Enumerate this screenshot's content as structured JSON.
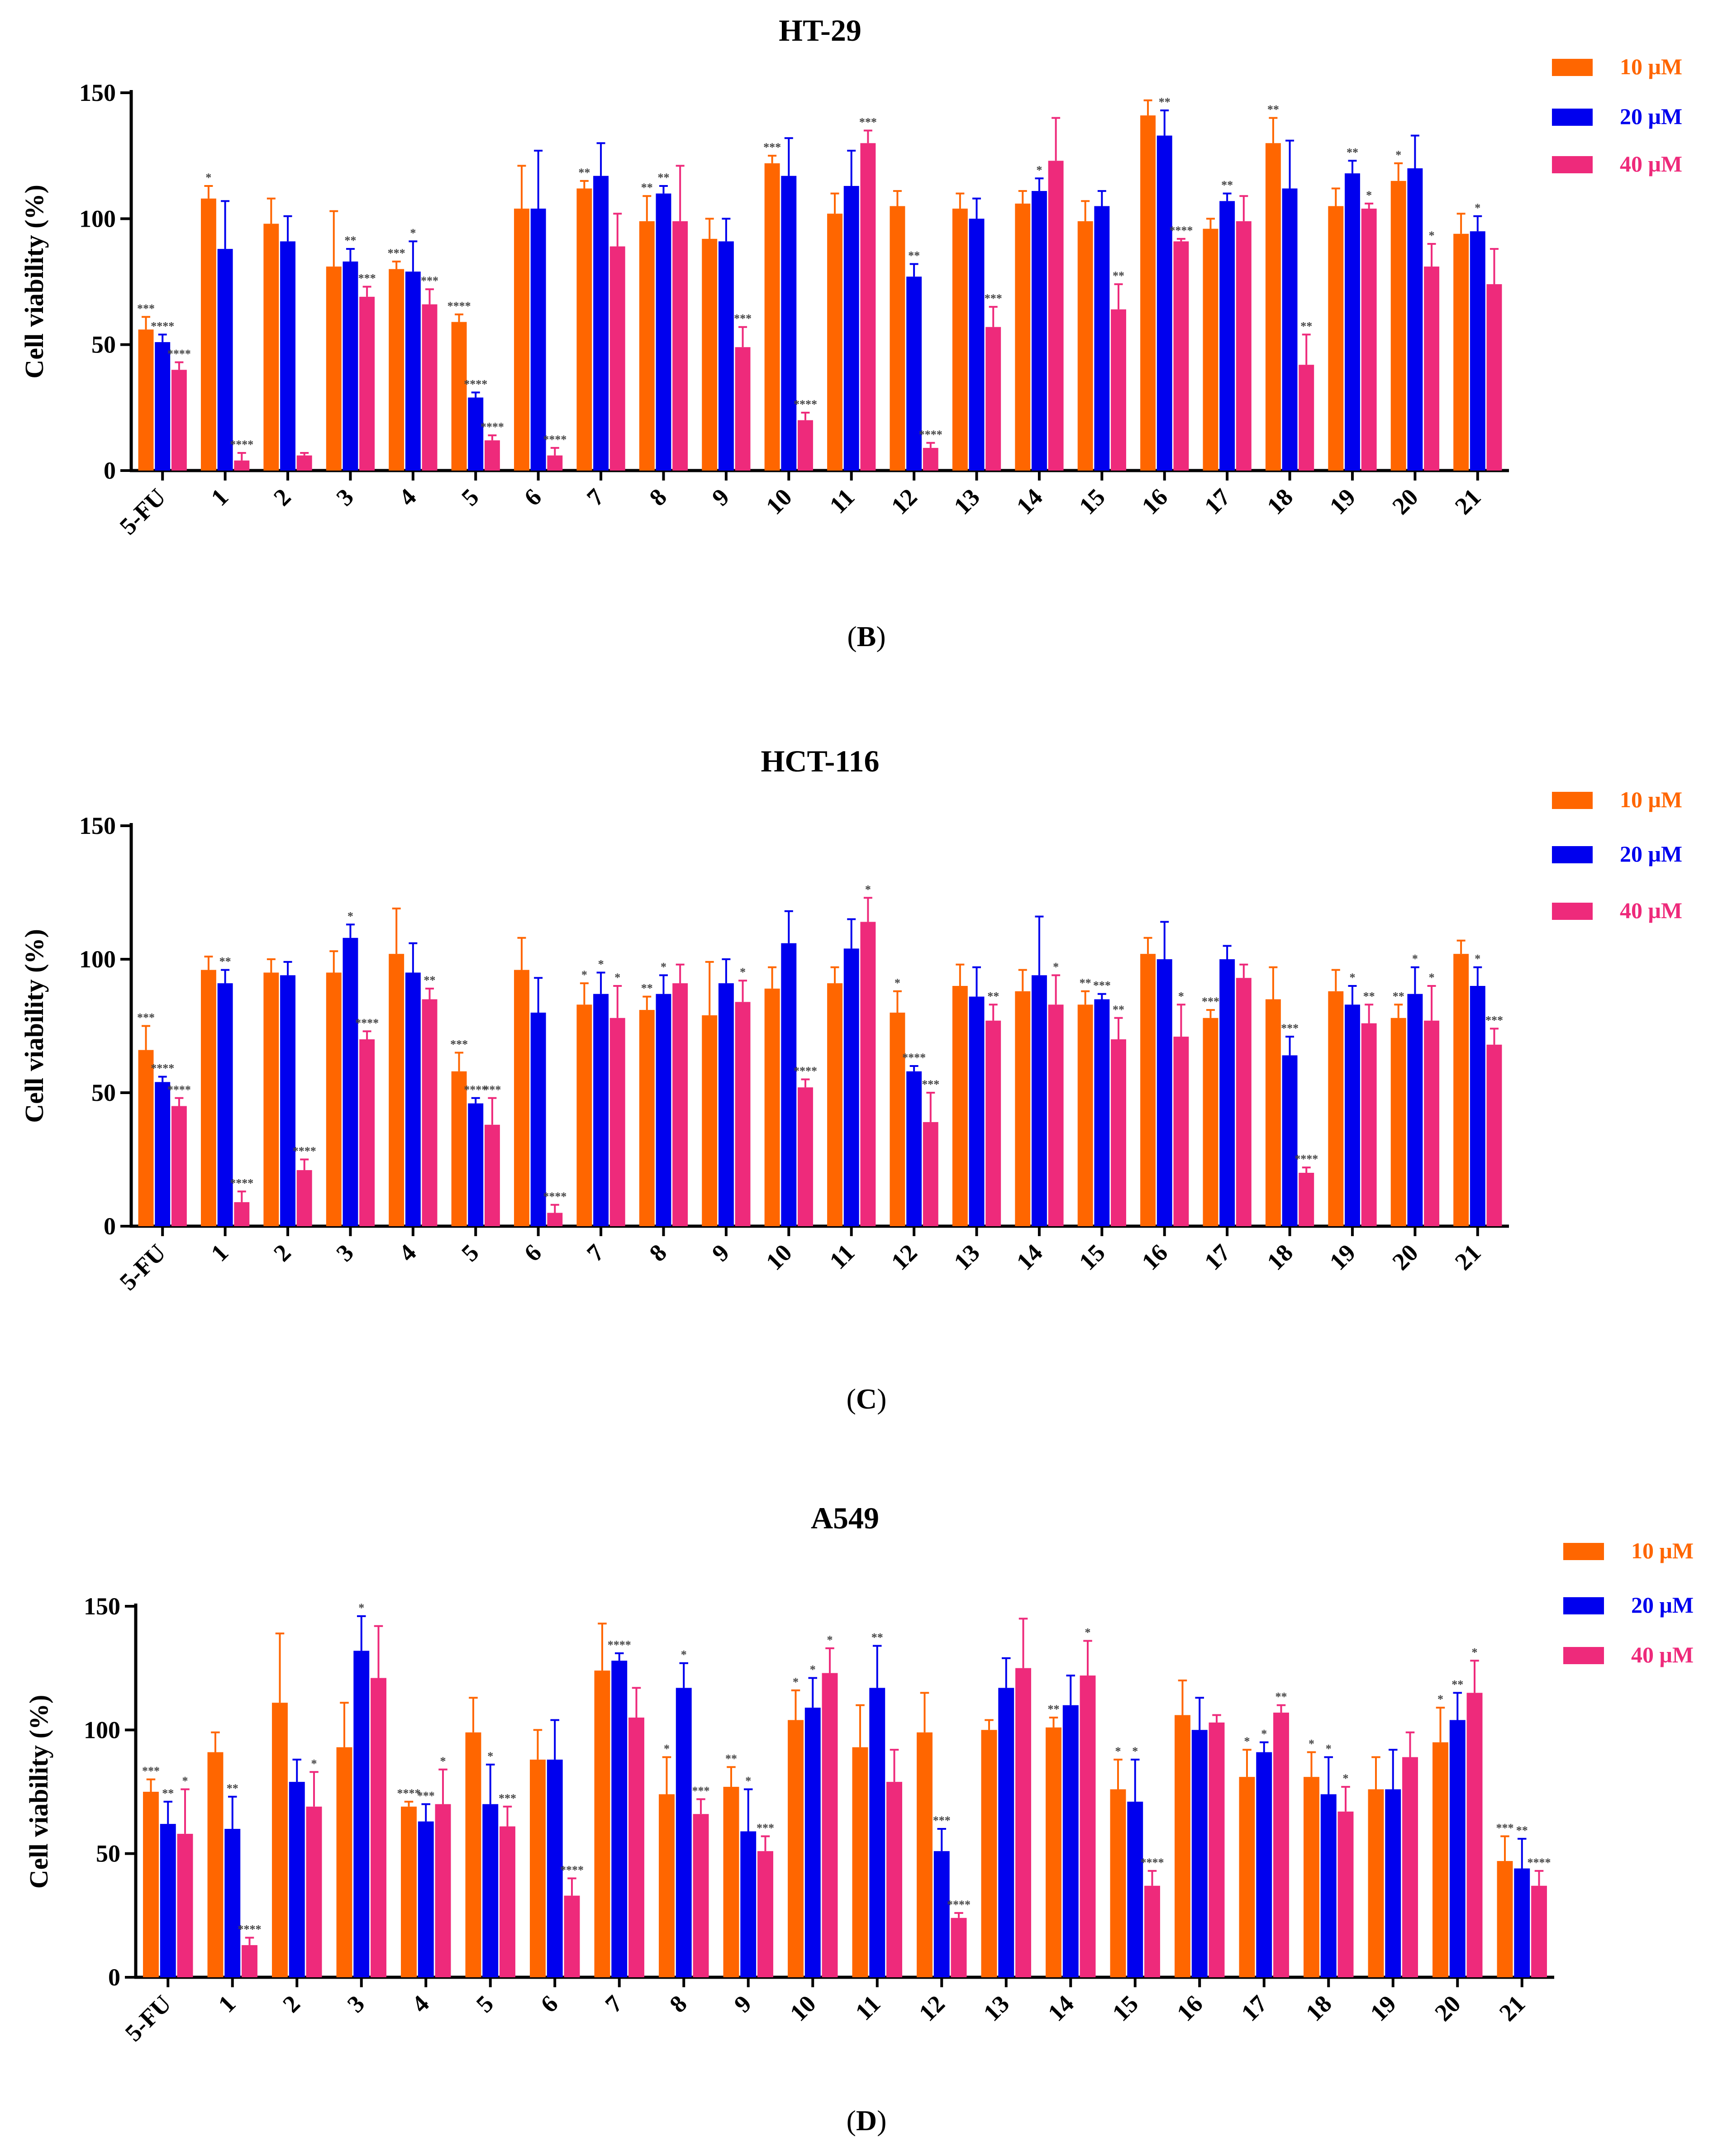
{
  "figure": {
    "panel_labels": [
      {
        "prefix": "(",
        "letter": "B",
        "suffix": ")"
      },
      {
        "prefix": "(",
        "letter": "C",
        "suffix": ")"
      },
      {
        "prefix": "(",
        "letter": "D",
        "suffix": ")"
      }
    ]
  },
  "colors": {
    "s10": "#ff6600",
    "s20": "#0000ee",
    "s40": "#ee2a7b",
    "axis": "#000000",
    "stars": "#444444"
  },
  "chart_data": [
    {
      "type": "bar",
      "title": "HT-29",
      "ylabel": "Cell viability (%)",
      "xlabel": "",
      "ylim": [
        0,
        150
      ],
      "yticks": [
        0,
        50,
        100,
        150
      ],
      "legend_position": "top-right",
      "categories": [
        "5-FU",
        "1",
        "2",
        "3",
        "4",
        "5",
        "6",
        "7",
        "8",
        "9",
        "10",
        "11",
        "12",
        "13",
        "14",
        "15",
        "16",
        "17",
        "18",
        "19",
        "20",
        "21"
      ],
      "series": [
        {
          "name": "10 μM",
          "values": [
            56,
            108,
            98,
            81,
            80,
            59,
            104,
            112,
            99,
            92,
            122,
            102,
            105,
            104,
            106,
            99,
            141,
            96,
            130,
            105,
            115,
            94
          ],
          "errors": [
            5,
            5,
            10,
            22,
            3,
            3,
            17,
            3,
            10,
            8,
            3,
            8,
            6,
            6,
            5,
            8,
            6,
            4,
            10,
            7,
            7,
            8
          ],
          "stars": [
            "***",
            "*",
            "",
            "",
            "***",
            "****",
            "",
            "**",
            "**",
            "",
            "***",
            "",
            "",
            "",
            "",
            "",
            "",
            "",
            "**",
            "",
            "*",
            ""
          ]
        },
        {
          "name": "20 μM",
          "values": [
            51,
            88,
            91,
            83,
            79,
            29,
            104,
            117,
            110,
            91,
            117,
            113,
            77,
            100,
            111,
            105,
            133,
            107,
            112,
            118,
            120,
            95
          ],
          "errors": [
            3,
            19,
            10,
            5,
            12,
            2,
            23,
            13,
            3,
            9,
            15,
            14,
            5,
            8,
            5,
            6,
            10,
            3,
            19,
            5,
            13,
            6
          ],
          "stars": [
            "****",
            "",
            "",
            "**",
            "*",
            "****",
            "",
            "",
            "**",
            "",
            "",
            "",
            "**",
            "",
            "*",
            "",
            "**",
            "**",
            "",
            "**",
            "",
            "*"
          ]
        },
        {
          "name": "40 μM",
          "values": [
            40,
            4,
            6,
            69,
            66,
            12,
            6,
            89,
            99,
            49,
            20,
            130,
            9,
            57,
            123,
            64,
            91,
            99,
            42,
            104,
            81,
            74
          ],
          "errors": [
            3,
            3,
            1,
            4,
            6,
            2,
            3,
            13,
            22,
            8,
            3,
            5,
            2,
            8,
            17,
            10,
            1,
            10,
            12,
            2,
            9,
            14
          ],
          "stars": [
            "****",
            "****",
            "",
            "***",
            "***",
            "****",
            "****",
            "",
            "",
            "***",
            "****",
            "***",
            "****",
            "***",
            "",
            "**",
            "****",
            "",
            "**",
            "*",
            "*",
            ""
          ]
        }
      ]
    },
    {
      "type": "bar",
      "title": "HCT-116",
      "ylabel": "Cell viability (%)",
      "xlabel": "",
      "ylim": [
        0,
        150
      ],
      "yticks": [
        0,
        50,
        100,
        150
      ],
      "legend_position": "top-right",
      "categories": [
        "5-FU",
        "1",
        "2",
        "3",
        "4",
        "5",
        "6",
        "7",
        "8",
        "9",
        "10",
        "11",
        "12",
        "13",
        "14",
        "15",
        "16",
        "17",
        "18",
        "19",
        "20",
        "21"
      ],
      "series": [
        {
          "name": "10 μM",
          "values": [
            66,
            96,
            95,
            95,
            102,
            58,
            96,
            83,
            81,
            79,
            89,
            91,
            80,
            90,
            88,
            83,
            102,
            78,
            85,
            88,
            78,
            102
          ],
          "errors": [
            9,
            5,
            5,
            8,
            17,
            7,
            12,
            8,
            5,
            20,
            8,
            6,
            8,
            8,
            8,
            5,
            6,
            3,
            12,
            8,
            5,
            5
          ],
          "stars": [
            "***",
            "",
            "",
            "",
            "",
            "***",
            "",
            "*",
            "**",
            "",
            "",
            "",
            "*",
            "",
            "",
            "**",
            "",
            "***",
            "",
            "",
            "**",
            ""
          ]
        },
        {
          "name": "20 μM",
          "values": [
            54,
            91,
            94,
            108,
            95,
            46,
            80,
            87,
            87,
            91,
            106,
            104,
            58,
            86,
            94,
            85,
            100,
            100,
            64,
            83,
            87,
            90
          ],
          "errors": [
            2,
            5,
            5,
            5,
            11,
            2,
            13,
            8,
            7,
            9,
            12,
            11,
            2,
            11,
            22,
            2,
            14,
            5,
            7,
            7,
            10,
            7
          ],
          "stars": [
            "****",
            "**",
            "",
            "*",
            "",
            "****",
            "",
            "*",
            "*",
            "",
            "",
            "",
            "****",
            "",
            "",
            "***",
            "",
            "",
            "***",
            "*",
            "*",
            "*"
          ]
        },
        {
          "name": "40 μM",
          "values": [
            45,
            9,
            21,
            70,
            85,
            38,
            5,
            78,
            91,
            84,
            52,
            114,
            39,
            77,
            83,
            70,
            71,
            93,
            20,
            76,
            77,
            68
          ],
          "errors": [
            3,
            4,
            4,
            3,
            4,
            10,
            3,
            12,
            7,
            8,
            3,
            9,
            11,
            6,
            11,
            8,
            12,
            5,
            2,
            7,
            13,
            6
          ],
          "stars": [
            "****",
            "****",
            "****",
            "****",
            "**",
            "***",
            "****",
            "*",
            "",
            "*",
            "****",
            "*",
            "***",
            "**",
            "*",
            "**",
            "*",
            "",
            "****",
            "**",
            "*",
            "***"
          ]
        }
      ]
    },
    {
      "type": "bar",
      "title": "A549",
      "ylabel": "Cell viability (%)",
      "xlabel": "",
      "ylim": [
        0,
        150
      ],
      "yticks": [
        0,
        50,
        100,
        150
      ],
      "legend_position": "top-right",
      "categories": [
        "5-FU",
        "1",
        "2",
        "3",
        "4",
        "5",
        "6",
        "7",
        "8",
        "9",
        "10",
        "11",
        "12",
        "13",
        "14",
        "15",
        "16",
        "17",
        "18",
        "19",
        "20",
        "21"
      ],
      "series": [
        {
          "name": "10 μM",
          "values": [
            75,
            91,
            111,
            93,
            69,
            99,
            88,
            124,
            74,
            77,
            104,
            93,
            99,
            100,
            101,
            76,
            106,
            81,
            81,
            76,
            95,
            47
          ],
          "errors": [
            5,
            8,
            28,
            18,
            2,
            14,
            12,
            19,
            15,
            8,
            12,
            17,
            16,
            4,
            4,
            12,
            14,
            11,
            10,
            13,
            14,
            10
          ],
          "stars": [
            "***",
            "",
            "",
            "",
            "****",
            "",
            "",
            "",
            "*",
            "**",
            "*",
            "",
            "",
            "",
            "**",
            "*",
            "",
            "*",
            "*",
            "",
            "*",
            "***"
          ]
        },
        {
          "name": "20 μM",
          "values": [
            62,
            60,
            79,
            132,
            63,
            70,
            88,
            128,
            117,
            59,
            109,
            117,
            51,
            117,
            110,
            71,
            100,
            91,
            74,
            76,
            104,
            44
          ],
          "errors": [
            9,
            13,
            9,
            14,
            7,
            16,
            16,
            3,
            10,
            17,
            12,
            17,
            9,
            12,
            12,
            17,
            13,
            4,
            15,
            16,
            11,
            12
          ],
          "stars": [
            "**",
            "**",
            "",
            "*",
            "***",
            "*",
            "",
            "****",
            "*",
            "*",
            "*",
            "**",
            "***",
            "",
            "",
            "*",
            "",
            "*",
            "*",
            "",
            "**",
            "**"
          ]
        },
        {
          "name": "40 μM",
          "values": [
            58,
            13,
            69,
            121,
            70,
            61,
            33,
            105,
            66,
            51,
            123,
            79,
            24,
            125,
            122,
            37,
            103,
            107,
            67,
            89,
            115,
            37
          ],
          "errors": [
            18,
            3,
            14,
            21,
            14,
            8,
            7,
            12,
            6,
            6,
            10,
            13,
            2,
            20,
            14,
            6,
            3,
            3,
            10,
            10,
            13,
            6
          ],
          "stars": [
            "*",
            "****",
            "*",
            "",
            "*",
            "***",
            "****",
            "",
            "***",
            "***",
            "*",
            "",
            "****",
            "",
            "*",
            "****",
            "",
            "**",
            "*",
            "",
            "*",
            "****"
          ]
        }
      ]
    }
  ]
}
